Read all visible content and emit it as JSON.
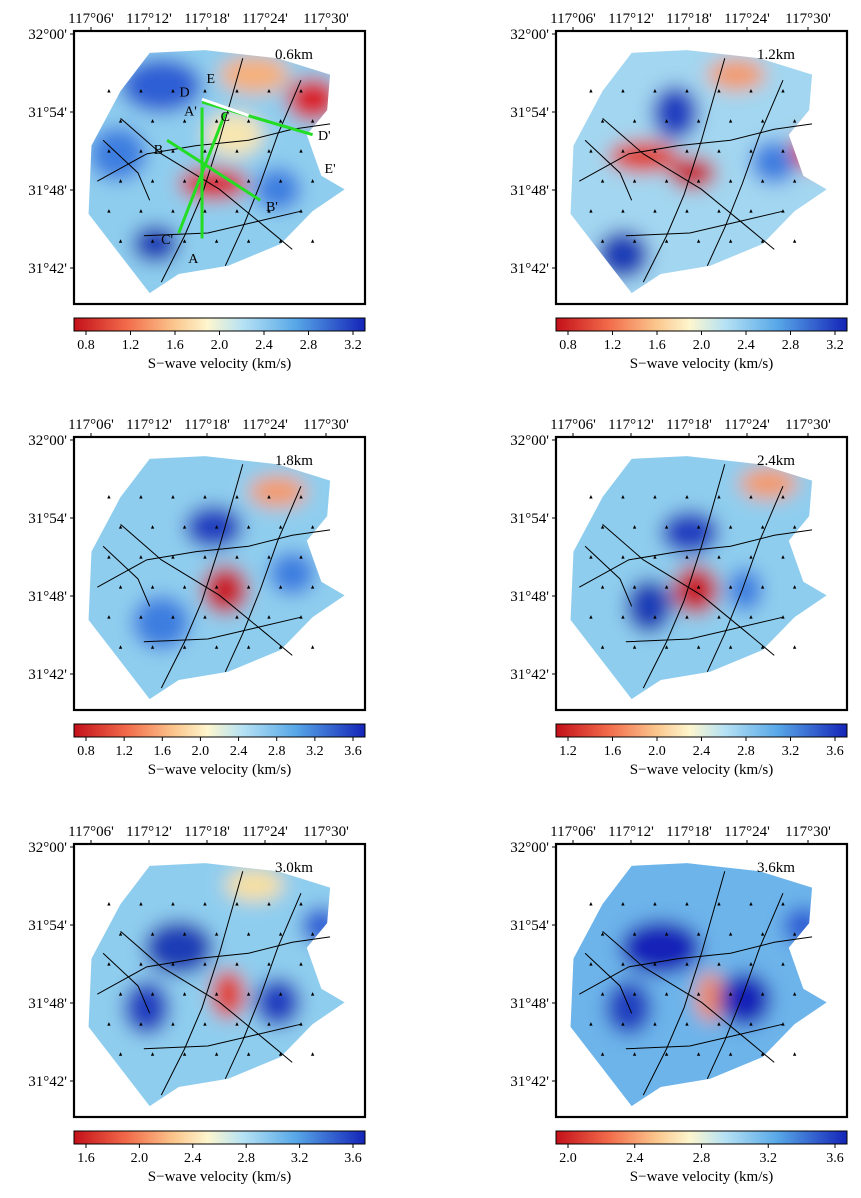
{
  "lon_ticks": [
    "117°06'",
    "117°12'",
    "117°18'",
    "117°24'",
    "117°30'"
  ],
  "lat_ticks": [
    "32°00'",
    "31°54'",
    "31°48'",
    "31°42'"
  ],
  "colorbar_label": "S−wave velocity (km/s)",
  "colors": {
    "low": "#c4101a",
    "mid": "#fdf6cf",
    "high": "#1424b8",
    "profile_line": "#22dd22",
    "profile_end": "#ffffff"
  },
  "panels": [
    {
      "depth_label": "0.6km",
      "colorbar_ticks": [
        "0.8",
        "1.2",
        "1.6",
        "2.0",
        "2.4",
        "2.8",
        "3.2"
      ],
      "profiles": [
        {
          "start": "A",
          "end": "A'"
        },
        {
          "start": "B",
          "end": "B'"
        },
        {
          "start": "C",
          "end": "C'"
        },
        {
          "start": "D",
          "end": "D'"
        },
        {
          "start": "E",
          "end": "E'"
        }
      ]
    },
    {
      "depth_label": "1.2km",
      "colorbar_ticks": [
        "0.8",
        "1.2",
        "1.6",
        "2.0",
        "2.4",
        "2.8",
        "3.2"
      ]
    },
    {
      "depth_label": "1.8km",
      "colorbar_ticks": [
        "0.8",
        "1.2",
        "1.6",
        "2.0",
        "2.4",
        "2.8",
        "3.2",
        "3.6"
      ]
    },
    {
      "depth_label": "2.4km",
      "colorbar_ticks": [
        "1.2",
        "1.6",
        "2.0",
        "2.4",
        "2.8",
        "3.2",
        "3.6"
      ]
    },
    {
      "depth_label": "3.0km",
      "colorbar_ticks": [
        "1.6",
        "2.0",
        "2.4",
        "2.8",
        "3.2",
        "3.6"
      ]
    },
    {
      "depth_label": "3.6km",
      "colorbar_ticks": [
        "2.0",
        "2.4",
        "2.8",
        "3.2",
        "3.6"
      ]
    }
  ]
}
